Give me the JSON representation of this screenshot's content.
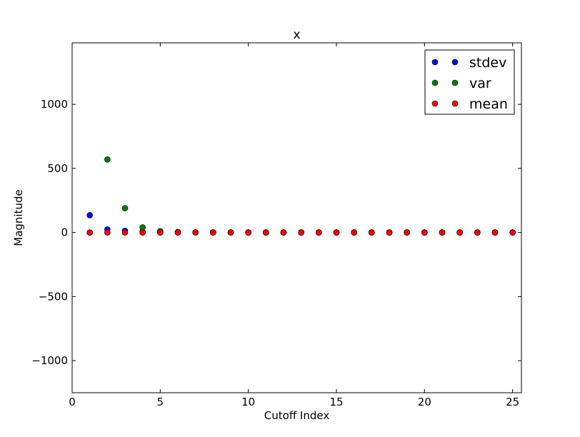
{
  "chart_data": {
    "type": "scatter",
    "title": "x",
    "xlabel": "Cutoff Index",
    "ylabel": "Magnitude",
    "xlim": [
      0,
      25.5
    ],
    "ylim": [
      -1250,
      1480
    ],
    "xticks": [
      0,
      5,
      10,
      15,
      20,
      25
    ],
    "xtick_labels": [
      "0",
      "5",
      "10",
      "15",
      "20",
      "25"
    ],
    "yticks": [
      -1000,
      -500,
      0,
      500,
      1000
    ],
    "ytick_labels": [
      "−1000",
      "−500",
      "0",
      "500",
      "1000"
    ],
    "grid": false,
    "legend_position": "top-right",
    "series": [
      {
        "name": "stdev",
        "color": "#0000ff",
        "x": [
          1,
          2,
          3,
          4,
          5,
          6,
          7,
          8,
          9,
          10,
          11,
          12,
          13,
          14,
          15,
          16,
          17,
          18,
          19,
          20,
          21,
          22,
          23,
          24,
          25
        ],
        "y": [
          135,
          24,
          14,
          6,
          3,
          2,
          1.5,
          1,
          1,
          1,
          1,
          1,
          1,
          1,
          1,
          1,
          1,
          1,
          1,
          1,
          1,
          1,
          1,
          1,
          1
        ]
      },
      {
        "name": "var",
        "color": "#008000",
        "x": [
          1,
          2,
          3,
          4,
          5,
          6,
          7,
          8,
          9,
          10,
          11,
          12,
          13,
          14,
          15,
          16,
          17,
          18,
          19,
          20,
          21,
          22,
          23,
          24,
          25
        ],
        "y": [
          0,
          570,
          190,
          40,
          10,
          4,
          2,
          1,
          1,
          0.5,
          0.5,
          0.5,
          0.5,
          0.5,
          0.5,
          0.5,
          0.5,
          0.5,
          0.5,
          0.5,
          0.5,
          0.5,
          0.5,
          0.5,
          0.5
        ]
      },
      {
        "name": "mean",
        "color": "#ff0000",
        "x": [
          1,
          2,
          3,
          4,
          5,
          6,
          7,
          8,
          9,
          10,
          11,
          12,
          13,
          14,
          15,
          16,
          17,
          18,
          19,
          20,
          21,
          22,
          23,
          24,
          25
        ],
        "y": [
          0,
          0,
          0,
          0,
          0,
          0,
          0,
          0,
          0,
          0,
          0,
          0,
          0,
          0,
          0,
          0,
          0,
          0,
          0,
          0,
          0,
          0,
          0,
          0,
          0
        ]
      }
    ]
  }
}
